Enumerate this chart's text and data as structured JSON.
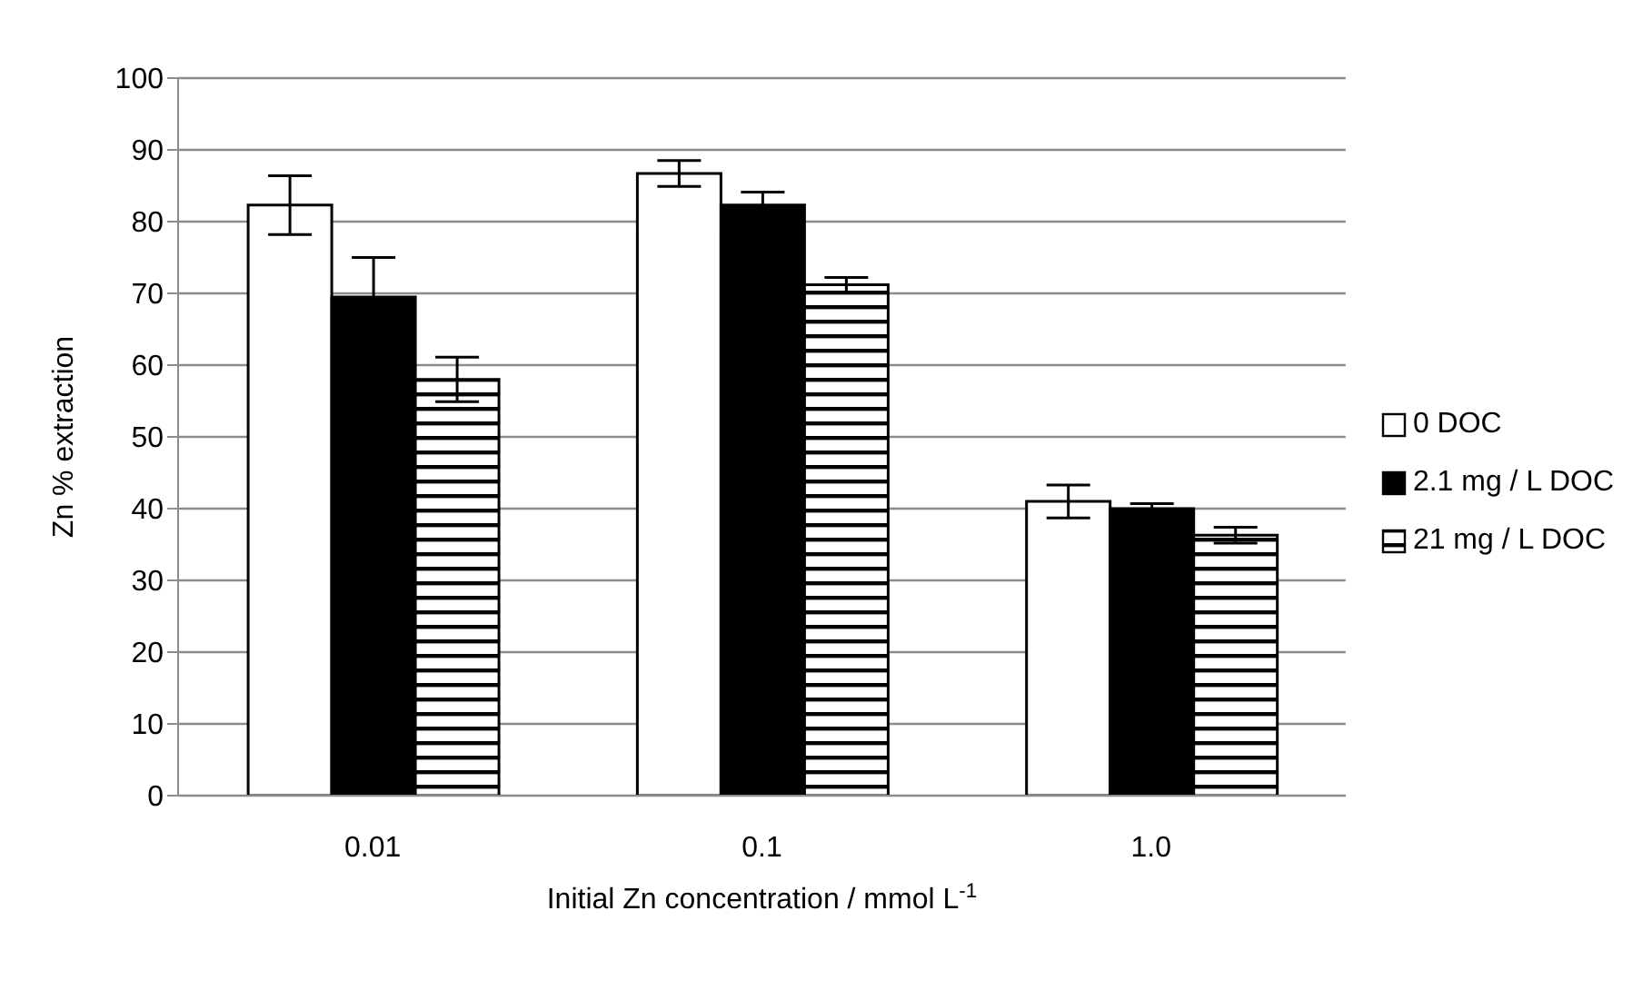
{
  "chart_data": {
    "type": "bar",
    "xlabel": "Initial Zn concentration / mmol L$^{-1}$",
    "ylabel": "Zn % extraction",
    "categories": [
      "0.01",
      "0.1",
      "1.0"
    ],
    "series": [
      {
        "name": "0 DOC",
        "color": "#ffffff",
        "values": [
          82.3,
          86.7,
          41.0
        ],
        "errors": [
          4.1,
          1.8,
          2.3
        ]
      },
      {
        "name": "2.1 mg / L DOC",
        "color": "#000000",
        "values": [
          69.5,
          82.3,
          40.0
        ],
        "errors": [
          5.5,
          1.8,
          0.7
        ]
      },
      {
        "name": "21 mg / L DOC",
        "color": "#000000",
        "values": [
          58.0,
          71.2,
          36.3
        ],
        "errors": [
          3.1,
          1.0,
          1.1
        ]
      }
    ],
    "ylim": [
      0,
      100
    ],
    "yticks": [
      0,
      10,
      20,
      30,
      40,
      50,
      60,
      70,
      80,
      90,
      100
    ],
    "grid": "y",
    "legend": "right"
  }
}
